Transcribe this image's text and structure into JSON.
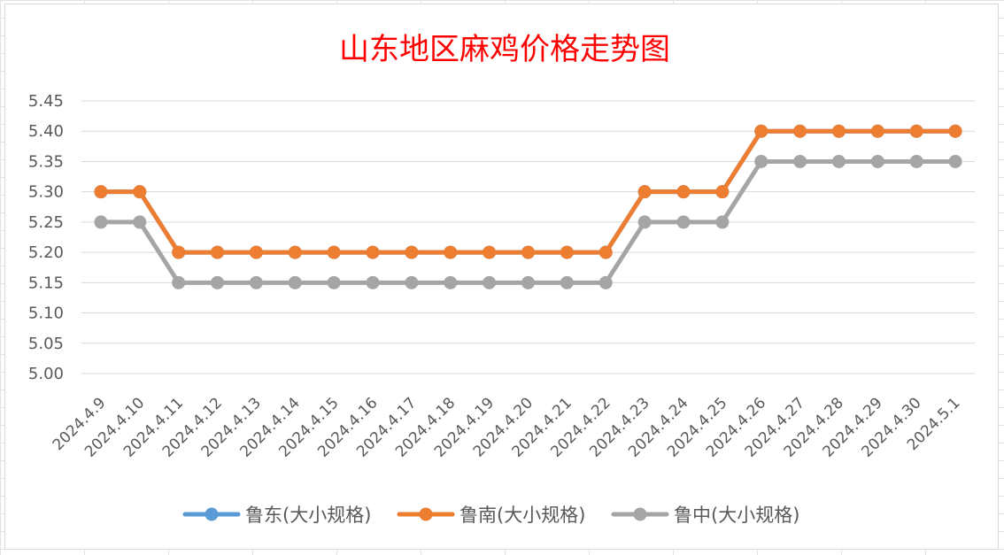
{
  "chart_data": {
    "type": "line",
    "title": "山东地区麻鸡价格走势图",
    "categories": [
      "2024.4.9",
      "2024.4.10",
      "2024.4.11",
      "2024.4.12",
      "2024.4.13",
      "2024.4.14",
      "2024.4.15",
      "2024.4.16",
      "2024.4.17",
      "2024.4.18",
      "2024.4.19",
      "2024.4.20",
      "2024.4.21",
      "2024.4.22",
      "2024.4.23",
      "2024.4.24",
      "2024.4.25",
      "2024.4.26",
      "2024.4.27",
      "2024.4.28",
      "2024.4.29",
      "2024.4.30",
      "2024.5.1"
    ],
    "ylim": [
      5.0,
      5.45
    ],
    "ytick_step": 0.05,
    "ytick_decimals": 2,
    "grid": true,
    "legend_position": "bottom",
    "series": [
      {
        "name": "鲁东(大小规格)",
        "color": "#5b9bd5",
        "values": [
          5.3,
          5.3,
          5.2,
          5.2,
          5.2,
          5.2,
          5.2,
          5.2,
          5.2,
          5.2,
          5.2,
          5.2,
          5.2,
          5.2,
          5.3,
          5.3,
          5.3,
          5.4,
          5.4,
          5.4,
          5.4,
          5.4,
          5.4
        ]
      },
      {
        "name": "鲁南(大小规格)",
        "color": "#ed7d31",
        "values": [
          5.3,
          5.3,
          5.2,
          5.2,
          5.2,
          5.2,
          5.2,
          5.2,
          5.2,
          5.2,
          5.2,
          5.2,
          5.2,
          5.2,
          5.3,
          5.3,
          5.3,
          5.4,
          5.4,
          5.4,
          5.4,
          5.4,
          5.4
        ]
      },
      {
        "name": "鲁中(大小规格)",
        "color": "#a5a5a5",
        "values": [
          5.25,
          5.25,
          5.15,
          5.15,
          5.15,
          5.15,
          5.15,
          5.15,
          5.15,
          5.15,
          5.15,
          5.15,
          5.15,
          5.15,
          5.25,
          5.25,
          5.25,
          5.35,
          5.35,
          5.35,
          5.35,
          5.35,
          5.35
        ]
      }
    ]
  }
}
